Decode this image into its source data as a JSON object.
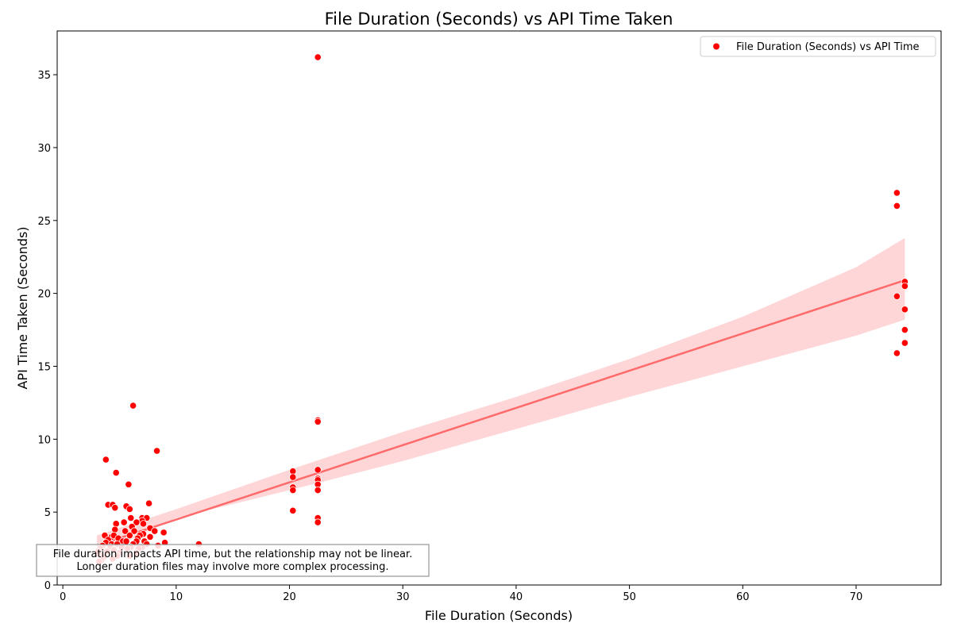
{
  "chart_data": {
    "type": "scatter",
    "title": "File Duration (Seconds) vs API Time Taken",
    "xlabel": "File Duration (Seconds)",
    "ylabel": "API Time Taken (Seconds)",
    "xlim": [
      -0.5,
      77.5
    ],
    "ylim": [
      0,
      38
    ],
    "xticks": [
      0,
      10,
      20,
      30,
      40,
      50,
      60,
      70
    ],
    "yticks": [
      0,
      5,
      10,
      15,
      20,
      25,
      30,
      35
    ],
    "grid": false,
    "legend": {
      "position": "top-right",
      "entries": [
        "File Duration (Seconds) vs API Time"
      ]
    },
    "annotation": {
      "lines": [
        "File duration impacts API time, but the relationship may not be linear.",
        "Longer duration files may involve more complex processing."
      ],
      "position": "bottom-left"
    },
    "colors": {
      "points": "#ff0000",
      "trend_line": "#ff6b6b",
      "confidence_band": "#ffd6d8"
    },
    "series": [
      {
        "name": "File Duration (Seconds) vs API Time",
        "points": [
          [
            22.5,
            36.2
          ],
          [
            73.6,
            26.9
          ],
          [
            73.6,
            26.0
          ],
          [
            73.6,
            19.8
          ],
          [
            73.6,
            15.9
          ],
          [
            74.3,
            20.8
          ],
          [
            74.3,
            20.5
          ],
          [
            74.3,
            18.9
          ],
          [
            74.3,
            17.5
          ],
          [
            74.3,
            16.6
          ],
          [
            6.2,
            12.3
          ],
          [
            8.3,
            9.2
          ],
          [
            3.8,
            8.6
          ],
          [
            4.7,
            7.7
          ],
          [
            5.8,
            6.9
          ],
          [
            7.6,
            5.6
          ],
          [
            4.0,
            5.5
          ],
          [
            4.4,
            5.5
          ],
          [
            5.6,
            5.4
          ],
          [
            4.6,
            5.3
          ],
          [
            5.9,
            5.2
          ],
          [
            6.0,
            4.6
          ],
          [
            7.0,
            4.6
          ],
          [
            7.4,
            4.6
          ],
          [
            7.0,
            4.4
          ],
          [
            5.4,
            4.3
          ],
          [
            6.5,
            4.3
          ],
          [
            4.7,
            4.2
          ],
          [
            7.1,
            4.2
          ],
          [
            6.1,
            4.0
          ],
          [
            7.7,
            3.9
          ],
          [
            4.6,
            3.8
          ],
          [
            5.5,
            3.7
          ],
          [
            6.3,
            3.7
          ],
          [
            8.1,
            3.7
          ],
          [
            8.9,
            3.6
          ],
          [
            7.1,
            3.5
          ],
          [
            6.8,
            3.4
          ],
          [
            3.7,
            3.4
          ],
          [
            4.3,
            3.3
          ],
          [
            4.5,
            3.4
          ],
          [
            5.9,
            3.4
          ],
          [
            7.7,
            3.3
          ],
          [
            4.9,
            3.2
          ],
          [
            6.6,
            3.2
          ],
          [
            4.0,
            3.1
          ],
          [
            5.3,
            3.0
          ],
          [
            5.6,
            3.0
          ],
          [
            6.5,
            3.0
          ],
          [
            7.2,
            3.0
          ],
          [
            3.8,
            2.9
          ],
          [
            9.0,
            2.9
          ],
          [
            4.3,
            2.8
          ],
          [
            4.8,
            2.8
          ],
          [
            6.2,
            2.8
          ],
          [
            7.4,
            2.8
          ],
          [
            3.5,
            2.7
          ],
          [
            8.4,
            2.7
          ],
          [
            4.2,
            2.6
          ],
          [
            5.2,
            2.6
          ],
          [
            6.0,
            2.6
          ],
          [
            7.0,
            2.6
          ],
          [
            3.3,
            2.5
          ],
          [
            5.7,
            2.5
          ],
          [
            6.7,
            2.5
          ],
          [
            4.5,
            2.4
          ],
          [
            3.9,
            2.3
          ],
          [
            5.0,
            2.2
          ],
          [
            6.5,
            2.2
          ],
          [
            3.2,
            2.1
          ],
          [
            4.8,
            2.0
          ],
          [
            5.9,
            2.0
          ],
          [
            3.6,
            1.9
          ],
          [
            4.4,
            1.8
          ],
          [
            3.4,
            1.7
          ],
          [
            3.2,
            1.6
          ],
          [
            3.1,
            2.3
          ],
          [
            12.0,
            2.8
          ],
          [
            20.3,
            7.8
          ],
          [
            20.3,
            7.4
          ],
          [
            20.3,
            6.7
          ],
          [
            20.3,
            6.5
          ],
          [
            20.3,
            5.1
          ],
          [
            22.5,
            11.3
          ],
          [
            22.5,
            11.2
          ],
          [
            22.5,
            7.9
          ],
          [
            22.5,
            7.3
          ],
          [
            22.5,
            7.2
          ],
          [
            22.5,
            6.9
          ],
          [
            22.5,
            6.5
          ],
          [
            22.5,
            4.6
          ],
          [
            22.5,
            4.3
          ]
        ]
      }
    ],
    "trend": {
      "x": [
        3.0,
        74.3
      ],
      "y": [
        2.7,
        20.9
      ]
    },
    "confidence_band": {
      "x": [
        3.0,
        10,
        20,
        30,
        40,
        50,
        60,
        70,
        74.3
      ],
      "lower": [
        2.0,
        4.6,
        6.5,
        8.5,
        10.7,
        12.9,
        15.0,
        17.1,
        18.2
      ],
      "upper": [
        3.4,
        5.2,
        7.9,
        10.5,
        12.9,
        15.5,
        18.4,
        21.8,
        23.8
      ]
    }
  }
}
